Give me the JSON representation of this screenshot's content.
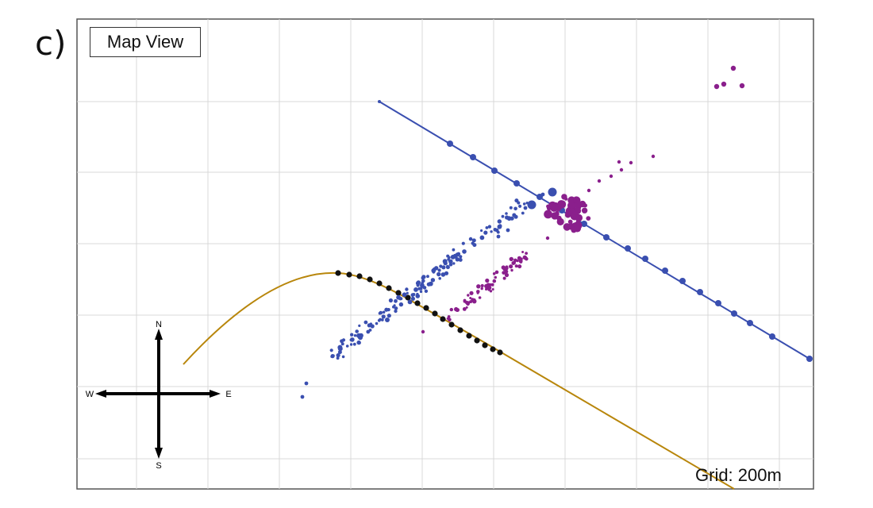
{
  "panel_label": "c)",
  "title": "Map View",
  "grid_label": "Grid: 200m",
  "compass": {
    "north": "N",
    "south": "S",
    "east": "E",
    "west": "W"
  },
  "colors": {
    "grid": "#d8d8d8",
    "frame": "#555555",
    "blue_well": "#3a4fb0",
    "blue_events": "#3a4fb0",
    "purple_events": "#8a1f8c",
    "brown_well": "#b8860b",
    "brown_stage": "#111111"
  }
}
